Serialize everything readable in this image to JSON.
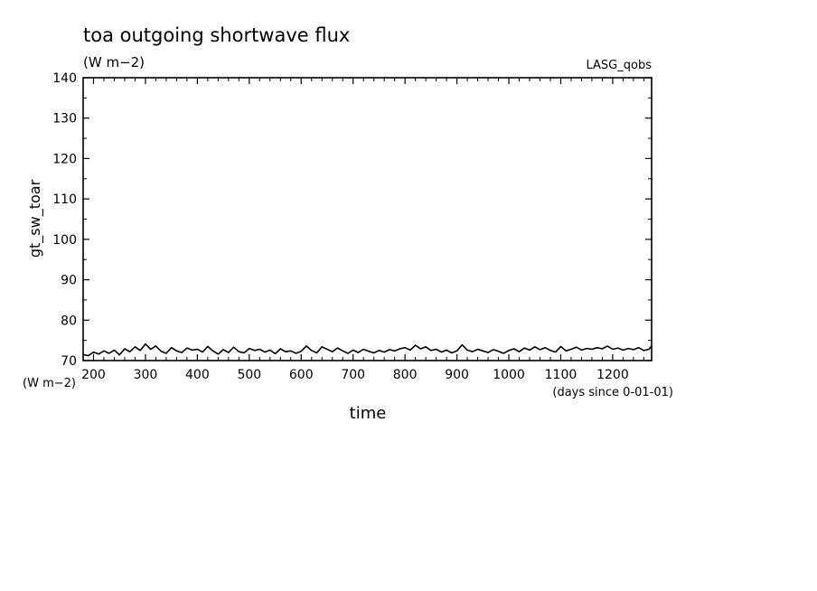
{
  "chart_data": {
    "type": "line",
    "title": "toa outgoing shortwave flux",
    "subtitle": "(W m−2)",
    "annotation": "LASG_qobs",
    "xlabel": "time",
    "xunits": "(days since 0-01-01)",
    "ylabel": "gt_sw_toar",
    "yunits": "(W m−2)",
    "xlim": [
      180,
      1275
    ],
    "ylim": [
      70,
      140
    ],
    "xticks": [
      200,
      300,
      400,
      500,
      600,
      700,
      800,
      900,
      1000,
      1100,
      1200
    ],
    "yticks": [
      70,
      80,
      90,
      100,
      110,
      120,
      130,
      140
    ],
    "grid": false,
    "line_color": "#000000",
    "series": [
      {
        "x": [
          180,
          190,
          200,
          210,
          220,
          230,
          240,
          250,
          260,
          270,
          280,
          290,
          300,
          310,
          320,
          330,
          340,
          350,
          360,
          370,
          380,
          390,
          400,
          410,
          420,
          430,
          440,
          450,
          460,
          470,
          480,
          490,
          500,
          510,
          520,
          530,
          540,
          550,
          560,
          570,
          580,
          590,
          600,
          610,
          620,
          630,
          640,
          650,
          660,
          670,
          680,
          690,
          700,
          710,
          720,
          730,
          740,
          750,
          760,
          770,
          780,
          790,
          800,
          810,
          820,
          830,
          840,
          850,
          860,
          870,
          880,
          890,
          900,
          910,
          920,
          930,
          940,
          950,
          960,
          970,
          980,
          990,
          1000,
          1010,
          1020,
          1030,
          1040,
          1050,
          1060,
          1070,
          1080,
          1090,
          1100,
          1110,
          1120,
          1130,
          1140,
          1150,
          1160,
          1170,
          1180,
          1190,
          1200,
          1210,
          1220,
          1230,
          1240,
          1250,
          1260,
          1270,
          1275
        ],
        "y": [
          71.5,
          71.2,
          72.1,
          71.6,
          72.4,
          71.8,
          72.6,
          71.4,
          72.9,
          72.2,
          73.4,
          72.5,
          74.1,
          72.8,
          73.6,
          72.3,
          71.8,
          73.2,
          72.4,
          72.0,
          73.1,
          72.6,
          72.8,
          72.1,
          73.5,
          72.4,
          71.6,
          72.7,
          72.0,
          73.3,
          72.2,
          71.9,
          73.0,
          72.5,
          72.8,
          72.1,
          72.6,
          71.7,
          72.9,
          72.2,
          72.4,
          71.8,
          72.3,
          73.6,
          72.5,
          71.9,
          73.4,
          72.8,
          72.2,
          73.1,
          72.4,
          71.8,
          72.6,
          72.0,
          72.8,
          72.3,
          71.9,
          72.5,
          72.1,
          72.7,
          72.4,
          72.9,
          73.2,
          72.6,
          73.8,
          72.9,
          73.4,
          72.5,
          72.8,
          72.1,
          72.6,
          71.9,
          72.4,
          73.9,
          72.6,
          72.2,
          72.8,
          72.4,
          72.0,
          72.7,
          72.3,
          71.8,
          72.5,
          72.9,
          72.2,
          73.1,
          72.6,
          73.4,
          72.7,
          73.2,
          72.5,
          72.1,
          73.5,
          72.4,
          72.8,
          73.3,
          72.6,
          73.0,
          72.8,
          73.2,
          72.9,
          73.6,
          72.8,
          73.1,
          72.6,
          73.0,
          72.7,
          73.2,
          72.5,
          72.8,
          73.6
        ]
      }
    ]
  }
}
